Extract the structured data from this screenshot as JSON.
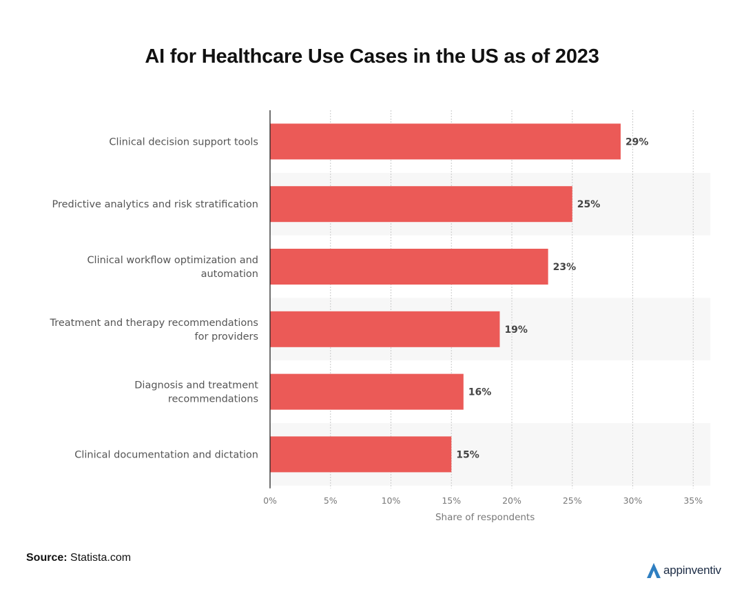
{
  "chart_data": {
    "type": "bar",
    "orientation": "horizontal",
    "title": "AI for Healthcare Use Cases in the US as of 2023",
    "categories": [
      [
        "Clinical decision support tools"
      ],
      [
        "Predictive analytics and risk stratification"
      ],
      [
        "Clinical workflow optimization and",
        "automation"
      ],
      [
        "Treatment and therapy recommendations",
        "for providers"
      ],
      [
        "Diagnosis and treatment",
        "recommendations"
      ],
      [
        "Clinical documentation and dictation"
      ]
    ],
    "values": [
      29,
      25,
      23,
      19,
      16,
      15
    ],
    "value_labels": [
      "29%",
      "25%",
      "23%",
      "19%",
      "16%",
      "15%"
    ],
    "xlim": [
      0,
      35
    ],
    "xticks": [
      0,
      5,
      10,
      15,
      20,
      25,
      30,
      35
    ],
    "xtick_labels": [
      "0%",
      "5%",
      "10%",
      "15%",
      "20%",
      "25%",
      "30%",
      "35%"
    ],
    "xlabel": "Share of respondents",
    "ylabel": "",
    "grid": true,
    "bar_color": "#eb5a57"
  },
  "footer": {
    "source_label": "Source:",
    "source_value": "Statista.com",
    "logo_text": "appinventiv",
    "logo_color": "#2f7fc1"
  }
}
